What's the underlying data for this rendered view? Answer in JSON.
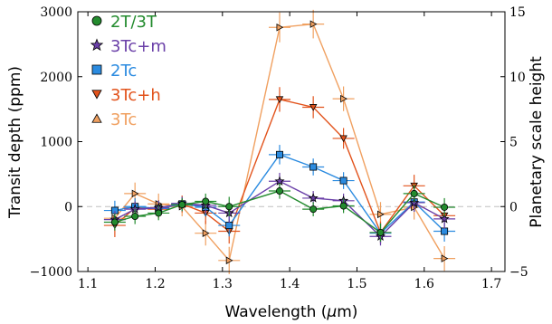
{
  "chart_data": {
    "type": "scatter",
    "xlabel": "Wavelength (μm)",
    "ylabel": "Transit depth (ppm)",
    "ylabel_right": "Planetary scale height",
    "xlim": [
      1.085,
      1.72
    ],
    "ylim": [
      -1000,
      3000
    ],
    "ylim_right": [
      -5,
      15
    ],
    "x_ticks": [
      1.1,
      1.2,
      1.3,
      1.4,
      1.5,
      1.6,
      1.7
    ],
    "x_tick_labels": [
      "1.1",
      "1.2",
      "1.3",
      "1.4",
      "1.5",
      "1.6",
      "1.7"
    ],
    "y_ticks": [
      -1000,
      0,
      1000,
      2000,
      3000
    ],
    "y_tick_labels": [
      "−1000",
      "0",
      "1000",
      "2000",
      "3000"
    ],
    "y_ticks_right": [
      -5,
      0,
      5,
      10,
      15
    ],
    "y_tick_labels_right": [
      "−5",
      "0",
      "5",
      "10",
      "15"
    ],
    "zero_line": true,
    "legend_position": "upper-left",
    "series": [
      {
        "name": "2T/3T",
        "marker": "circle",
        "color": "#238b2e",
        "x": [
          1.14,
          1.17,
          1.205,
          1.24,
          1.275,
          1.31,
          1.385,
          1.435,
          1.48,
          1.535,
          1.585,
          1.63
        ],
        "y": [
          -240,
          -150,
          -100,
          30,
          80,
          0,
          240,
          -40,
          10,
          -400,
          200,
          -10
        ],
        "err": [
          130,
          120,
          110,
          100,
          120,
          150,
          120,
          110,
          110,
          140,
          140,
          140
        ]
      },
      {
        "name": "3Tc+m",
        "marker": "star",
        "color": "#6a3fa8",
        "x": [
          1.14,
          1.17,
          1.205,
          1.24,
          1.275,
          1.31,
          1.385,
          1.435,
          1.48,
          1.535,
          1.585,
          1.63
        ],
        "y": [
          -200,
          -40,
          -20,
          50,
          20,
          -100,
          390,
          130,
          90,
          -460,
          60,
          -190
        ],
        "err": [
          130,
          120,
          110,
          100,
          120,
          150,
          130,
          110,
          110,
          140,
          140,
          150
        ]
      },
      {
        "name": "2Tc",
        "marker": "square",
        "color": "#2b8be0",
        "x": [
          1.14,
          1.17,
          1.205,
          1.24,
          1.275,
          1.31,
          1.385,
          1.435,
          1.48,
          1.535,
          1.585,
          1.63
        ],
        "y": [
          -60,
          0,
          -30,
          40,
          -10,
          -290,
          800,
          610,
          400,
          -410,
          70,
          -380
        ],
        "err": [
          150,
          130,
          120,
          110,
          140,
          170,
          150,
          130,
          130,
          150,
          150,
          160
        ]
      },
      {
        "name": "3Tc+h",
        "marker": "triangle-down",
        "color": "#e2531c",
        "x": [
          1.14,
          1.17,
          1.205,
          1.24,
          1.275,
          1.31,
          1.385,
          1.435,
          1.48,
          1.535,
          1.585,
          1.63
        ],
        "y": [
          -290,
          -20,
          -40,
          40,
          -100,
          -380,
          1650,
          1530,
          1050,
          -400,
          320,
          -140
        ],
        "err": [
          180,
          150,
          140,
          130,
          170,
          190,
          190,
          170,
          160,
          170,
          170,
          170
        ]
      },
      {
        "name": "3Tc",
        "marker": "triangle-right",
        "color": "#f0a060",
        "x": [
          1.14,
          1.17,
          1.205,
          1.24,
          1.275,
          1.31,
          1.385,
          1.435,
          1.48,
          1.535,
          1.585,
          1.63
        ],
        "y": [
          -180,
          200,
          40,
          0,
          -410,
          -830,
          2760,
          2810,
          1660,
          -120,
          -10,
          -800
        ],
        "err": [
          180,
          170,
          160,
          150,
          190,
          210,
          230,
          220,
          190,
          190,
          190,
          190
        ]
      }
    ]
  },
  "colors": {
    "zero_line": "#bfbfbf",
    "axes": "#000000"
  }
}
